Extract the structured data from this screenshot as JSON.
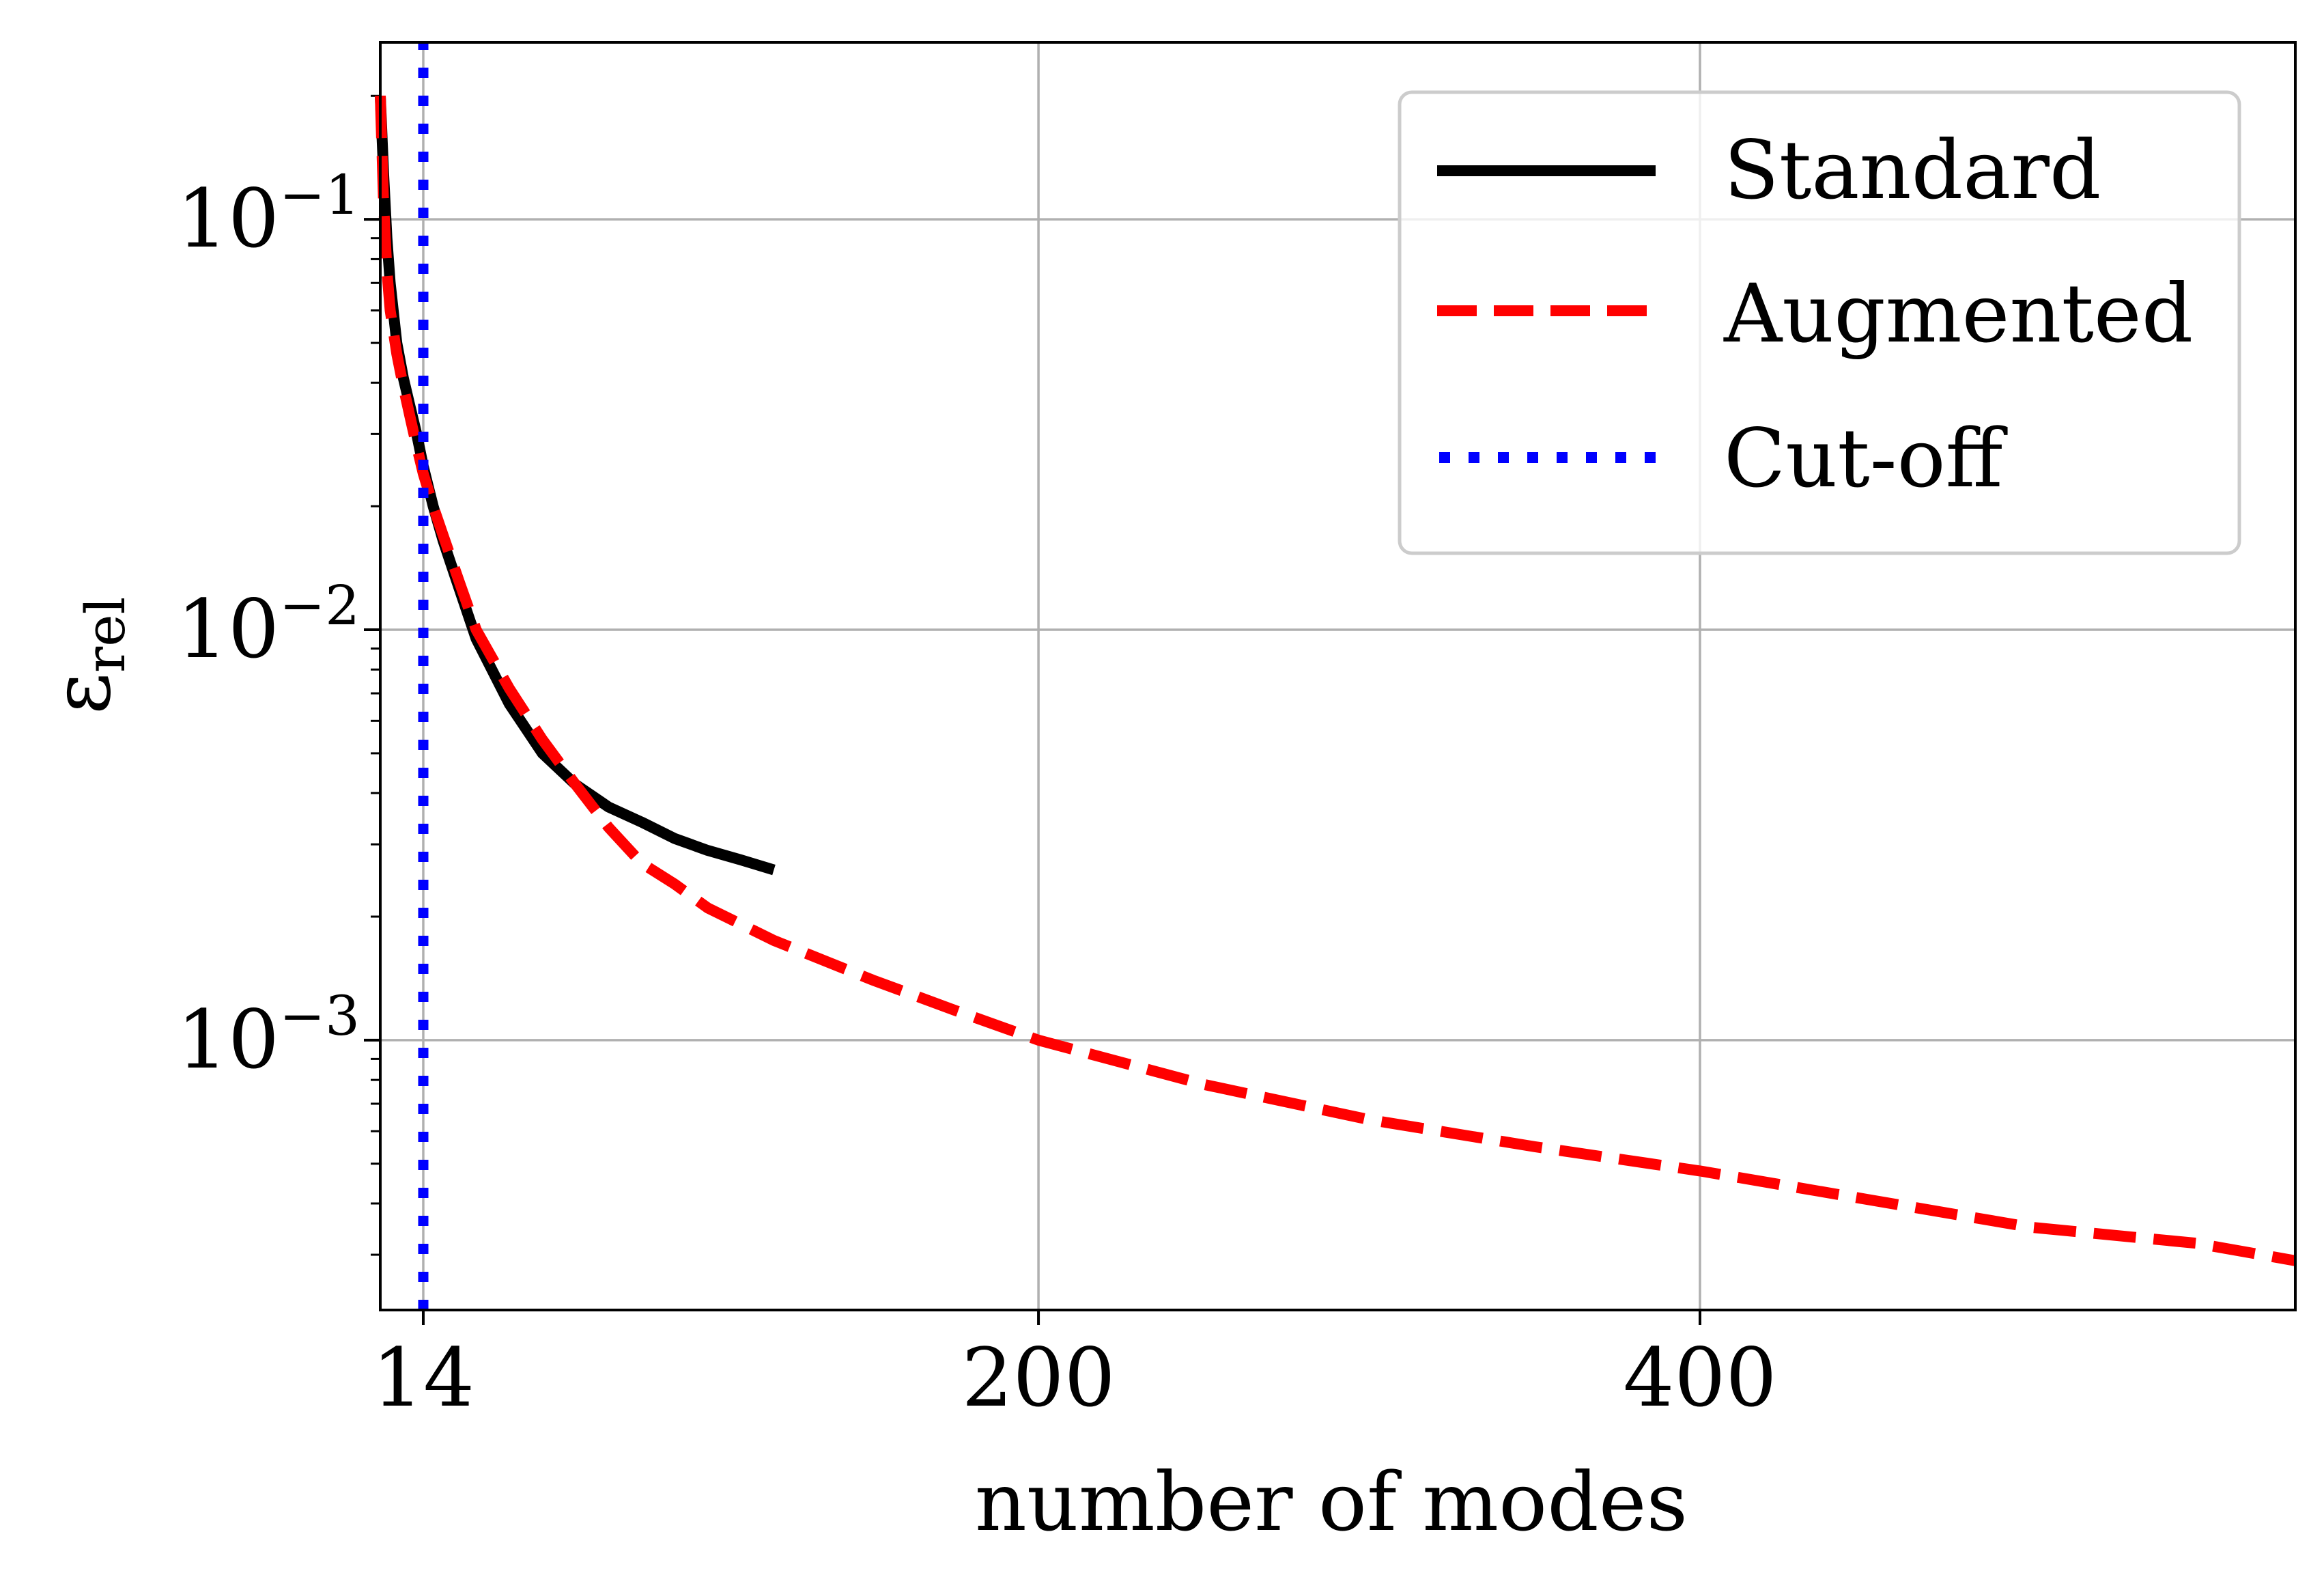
{
  "chart_data": {
    "type": "line",
    "title": "",
    "xlabel": "number of modes",
    "ylabel": "ε",
    "ylabel_subscript": "rel",
    "yscale": "log",
    "xlim": [
      1,
      580
    ],
    "ylim": [
      0.00022,
      0.27
    ],
    "xticks": [
      14,
      200,
      400
    ],
    "xtick_labels": [
      "14",
      "200",
      "400"
    ],
    "yticks": [
      0.1,
      0.01,
      0.001
    ],
    "ytick_labels": [
      {
        "base": "10",
        "exp": "−1"
      },
      {
        "base": "10",
        "exp": "−2"
      },
      {
        "base": "10",
        "exp": "−3"
      }
    ],
    "grid": true,
    "legend": {
      "position": "top-right",
      "entries": [
        {
          "label": "Standard",
          "color": "#000000",
          "style": "solid"
        },
        {
          "label": "Augmented",
          "color": "#ff0000",
          "style": "dashed"
        },
        {
          "label": "Cut-off",
          "color": "#0000ff",
          "style": "dotted"
        }
      ]
    },
    "series": [
      {
        "name": "Standard",
        "color": "#000000",
        "style": "solid",
        "x": [
          1,
          2,
          3,
          4,
          6,
          8,
          10,
          12,
          14,
          17,
          20,
          25,
          30,
          40,
          50,
          60,
          70,
          80,
          90,
          100,
          110,
          120
        ],
        "y": [
          0.2,
          0.13,
          0.09,
          0.07,
          0.05,
          0.041,
          0.035,
          0.03,
          0.025,
          0.02,
          0.0165,
          0.0125,
          0.0095,
          0.0066,
          0.005,
          0.0042,
          0.0037,
          0.0034,
          0.0031,
          0.0029,
          0.00275,
          0.0026
        ]
      },
      {
        "name": "Augmented",
        "color": "#ff0000",
        "style": "dashed",
        "x": [
          1,
          2,
          3,
          4,
          6,
          8,
          10,
          12,
          14,
          17,
          20,
          25,
          30,
          40,
          50,
          60,
          70,
          80,
          90,
          100,
          120,
          150,
          175,
          200,
          250,
          300,
          350,
          400,
          450,
          500,
          550,
          580
        ],
        "y": [
          0.2,
          0.11,
          0.075,
          0.06,
          0.047,
          0.039,
          0.033,
          0.028,
          0.024,
          0.02,
          0.017,
          0.013,
          0.01,
          0.0072,
          0.0054,
          0.0042,
          0.0033,
          0.0027,
          0.0024,
          0.0021,
          0.00175,
          0.0014,
          0.00118,
          0.001,
          0.00078,
          0.00064,
          0.00055,
          0.00048,
          0.00041,
          0.00035,
          0.00032,
          0.00029
        ]
      },
      {
        "name": "Cut-off",
        "color": "#0000ff",
        "style": "dotted",
        "x": [
          14,
          14
        ],
        "y": [
          0.00022,
          0.27
        ]
      }
    ]
  }
}
